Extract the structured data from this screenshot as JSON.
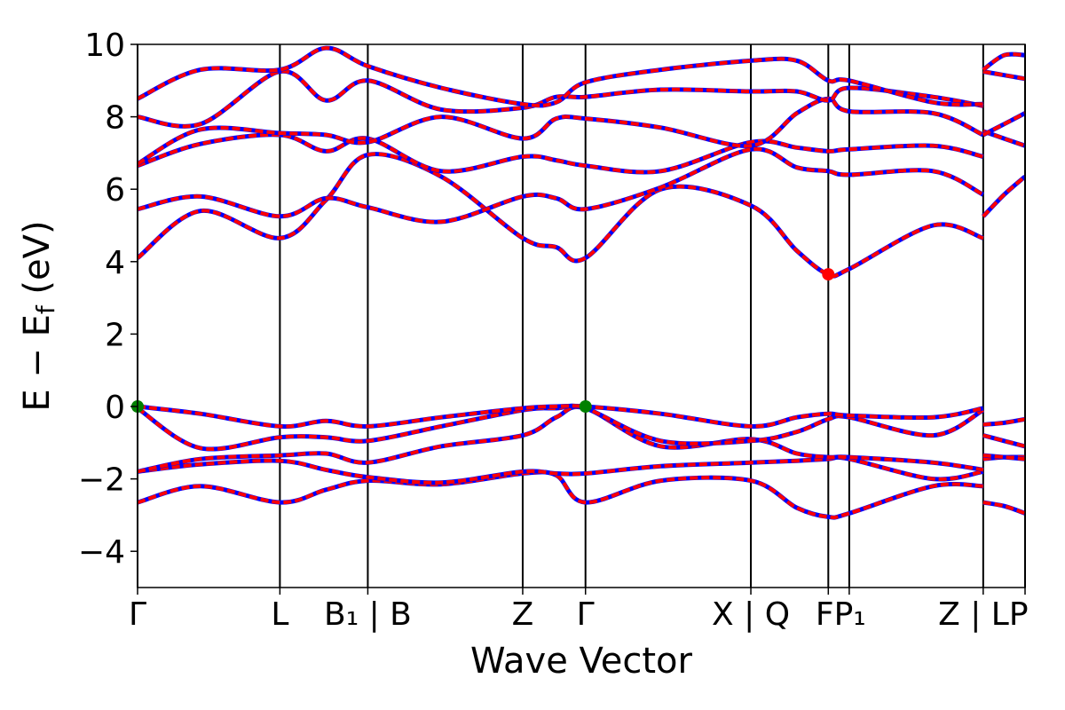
{
  "chart_data": {
    "type": "line",
    "title": "",
    "xlabel": "Wave Vector",
    "ylabel": "E − E_f (eV)",
    "ylabel_main": "E  −  E",
    "ylabel_sub": "f",
    "ylabel_tail": " (eV)",
    "ylim": [
      -5,
      10
    ],
    "xlim": [
      0,
      6.52
    ],
    "grid": false,
    "y_ticks": [
      -4,
      -2,
      0,
      2,
      4,
      6,
      8,
      10
    ],
    "y_tick_labels": [
      "−4",
      "−2",
      "0",
      "2",
      "4",
      "6",
      "8",
      "10"
    ],
    "k_points": [
      {
        "x": 0.0,
        "label": "Γ"
      },
      {
        "x": 0.68,
        "label": "L"
      },
      {
        "x": 1.1,
        "label": "B₁ | B"
      },
      {
        "x": 1.84,
        "label": "Z"
      },
      {
        "x": 2.14,
        "label": "Γ"
      },
      {
        "x": 2.93,
        "label": "X | Q"
      },
      {
        "x": 3.3,
        "label": "FP₁"
      },
      {
        "x": 3.4,
        "label": ""
      },
      {
        "x": 4.04,
        "label": "Z | LP"
      },
      {
        "x": 4.24,
        "label": ""
      }
    ],
    "colors": {
      "band": "#ff0000",
      "band_overlay": "#0000ff",
      "vbm": "#008000",
      "cbm": "#ff0000",
      "axes": "#000000"
    },
    "vbm_points": [
      {
        "x": 0.0,
        "y": 0.0
      },
      {
        "x": 2.14,
        "y": 0.0
      }
    ],
    "cbm_points": [
      {
        "x": 3.3,
        "y": 3.65
      }
    ],
    "series": [
      {
        "x": [
          0,
          0.3,
          0.68,
          0.9,
          1.1,
          1.45,
          1.84,
          2.0,
          2.14,
          2.5,
          2.93,
          3.15,
          3.3,
          3.4,
          3.8,
          4.04
        ],
        "values": [
          -2.65,
          -2.2,
          -2.65,
          -2.3,
          -2.05,
          -2.15,
          -1.85,
          -1.9,
          -2.65,
          -2.05,
          -2.05,
          -2.8,
          -3.05,
          -2.95,
          -2.2,
          -2.2
        ]
      },
      {
        "x": [
          0,
          0.3,
          0.68,
          0.9,
          1.1,
          1.45,
          1.84,
          2.0,
          2.14,
          2.5,
          2.93,
          3.15,
          3.3,
          3.4,
          3.8,
          4.04
        ],
        "values": [
          -1.8,
          -1.6,
          -1.5,
          -1.75,
          -1.95,
          -2.1,
          -1.8,
          -1.85,
          -1.85,
          -1.65,
          -1.55,
          -1.5,
          -1.45,
          -1.45,
          -2.0,
          -1.8
        ]
      },
      {
        "x": [
          0,
          0.3,
          0.68,
          0.9,
          1.1,
          1.45,
          1.84,
          2.0,
          2.14,
          2.5,
          2.93,
          3.15,
          3.3,
          3.4,
          3.8,
          4.04
        ],
        "values": [
          -1.8,
          -1.45,
          -1.35,
          -1.3,
          -1.55,
          -1.1,
          -0.8,
          -0.3,
          -0.05,
          -1.1,
          -0.9,
          -1.3,
          -1.4,
          -1.4,
          -1.55,
          -1.75
        ]
      },
      {
        "x": [
          0,
          0.3,
          0.68,
          0.9,
          1.1,
          1.45,
          1.84,
          2.0,
          2.14,
          2.5,
          2.93,
          3.15,
          3.3,
          3.4,
          3.8,
          4.04
        ],
        "values": [
          -0.05,
          -1.15,
          -0.85,
          -0.85,
          -0.95,
          -0.55,
          -0.1,
          -0.05,
          -0.05,
          -0.95,
          -0.95,
          -0.7,
          -0.35,
          -0.3,
          -0.8,
          -0.1
        ]
      },
      {
        "x": [
          0,
          0.3,
          0.68,
          0.9,
          1.1,
          1.45,
          1.84,
          2.0,
          2.14,
          2.5,
          2.93,
          3.15,
          3.3,
          3.4,
          3.8,
          4.04
        ],
        "values": [
          0.0,
          -0.2,
          -0.55,
          -0.4,
          -0.55,
          -0.3,
          -0.05,
          0.0,
          0.0,
          -0.2,
          -0.55,
          -0.3,
          -0.2,
          -0.25,
          -0.3,
          -0.05
        ]
      },
      {
        "x": [
          0,
          0.3,
          0.68,
          0.9,
          1.1,
          1.45,
          1.84,
          2.0,
          2.14,
          2.5,
          2.93,
          3.15,
          3.3,
          3.4,
          3.8,
          4.04
        ],
        "values": [
          4.1,
          5.4,
          4.65,
          5.7,
          6.95,
          6.35,
          4.65,
          4.4,
          4.1,
          6.0,
          5.55,
          4.3,
          3.65,
          3.8,
          5.0,
          4.65
        ]
      },
      {
        "x": [
          0,
          0.3,
          0.68,
          0.9,
          1.1,
          1.45,
          1.84,
          2.0,
          2.14,
          2.5,
          2.93,
          3.15,
          3.3,
          3.4,
          3.8,
          4.04
        ],
        "values": [
          5.45,
          5.8,
          5.25,
          5.75,
          5.5,
          5.1,
          5.8,
          5.75,
          5.45,
          6.05,
          7.1,
          6.6,
          6.5,
          6.4,
          6.5,
          5.85
        ]
      },
      {
        "x": [
          0,
          0.3,
          0.68,
          0.9,
          1.1,
          1.45,
          1.84,
          2.0,
          2.14,
          2.5,
          2.93,
          3.15,
          3.3,
          3.4,
          3.8,
          4.04
        ],
        "values": [
          6.65,
          7.25,
          7.5,
          7.05,
          7.4,
          6.5,
          6.9,
          6.8,
          6.65,
          6.5,
          7.3,
          7.15,
          7.05,
          7.1,
          7.2,
          6.9
        ]
      },
      {
        "x": [
          0,
          0.3,
          0.68,
          0.9,
          1.1,
          1.45,
          1.84,
          2.0,
          2.14,
          2.5,
          2.93,
          3.15,
          3.3,
          3.4,
          3.8,
          4.04
        ],
        "values": [
          6.7,
          7.65,
          7.55,
          7.5,
          7.3,
          8.0,
          7.4,
          7.95,
          7.95,
          7.7,
          7.2,
          8.1,
          8.5,
          8.15,
          8.1,
          7.5
        ]
      },
      {
        "x": [
          0,
          0.3,
          0.68,
          0.9,
          1.1,
          1.45,
          1.84,
          2.0,
          2.14,
          2.5,
          2.93,
          3.15,
          3.3,
          3.4,
          3.8,
          4.04
        ],
        "values": [
          8.0,
          7.8,
          9.25,
          8.45,
          9.0,
          8.2,
          8.25,
          8.55,
          8.55,
          8.75,
          8.7,
          8.7,
          8.45,
          8.8,
          8.55,
          8.3
        ]
      },
      {
        "x": [
          0,
          0.3,
          0.68,
          0.9,
          1.1,
          1.45,
          1.84,
          2.0,
          2.14,
          2.5,
          2.93,
          3.15,
          3.3,
          3.4,
          3.8,
          4.04
        ],
        "values": [
          8.5,
          9.3,
          9.3,
          9.9,
          9.4,
          8.8,
          8.35,
          8.4,
          8.95,
          9.3,
          9.55,
          9.55,
          9.0,
          9.0,
          8.4,
          8.35
        ]
      }
    ],
    "segment2_series": [
      {
        "x": [
          4.04,
          4.14,
          4.24
        ],
        "values": [
          -2.65,
          -2.75,
          -2.95
        ]
      },
      {
        "x": [
          4.04,
          4.14,
          4.24
        ],
        "values": [
          -1.45,
          -1.4,
          -1.4
        ]
      },
      {
        "x": [
          4.04,
          4.14,
          4.24
        ],
        "values": [
          -1.35,
          -1.4,
          -1.45
        ]
      },
      {
        "x": [
          4.04,
          4.14,
          4.24
        ],
        "values": [
          -0.8,
          -0.95,
          -1.1
        ]
      },
      {
        "x": [
          4.04,
          4.14,
          4.24
        ],
        "values": [
          -0.5,
          -0.45,
          -0.35
        ]
      },
      {
        "x": [
          4.04,
          4.14,
          4.24
        ],
        "values": [
          5.25,
          5.85,
          6.35
        ]
      },
      {
        "x": [
          4.04,
          4.14,
          4.24
        ],
        "values": [
          7.6,
          7.4,
          7.2
        ]
      },
      {
        "x": [
          4.04,
          4.14,
          4.24
        ],
        "values": [
          7.5,
          7.8,
          8.1
        ]
      },
      {
        "x": [
          4.04,
          4.14,
          4.24
        ],
        "values": [
          9.25,
          9.15,
          9.05
        ]
      },
      {
        "x": [
          4.04,
          4.14,
          4.24
        ],
        "values": [
          9.3,
          9.7,
          9.7
        ]
      }
    ]
  }
}
